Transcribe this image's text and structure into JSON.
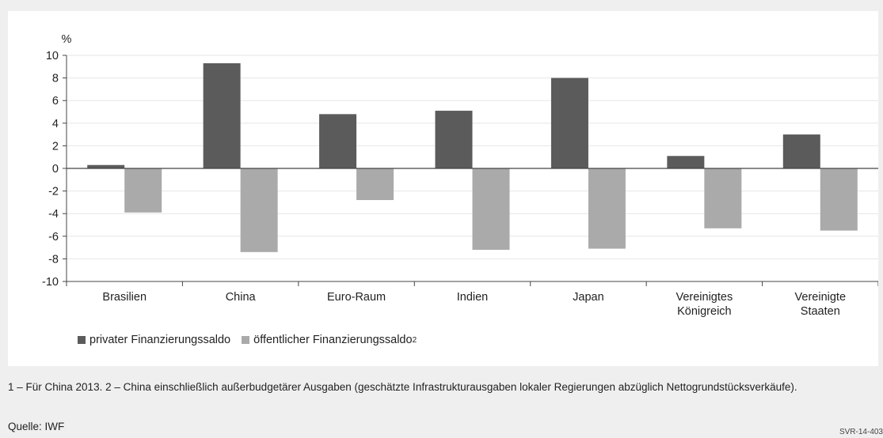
{
  "chart_data": {
    "type": "bar",
    "unit_label": "%",
    "categories": [
      [
        "Brasilien"
      ],
      [
        "China"
      ],
      [
        "Euro-Raum"
      ],
      [
        "Indien"
      ],
      [
        "Japan"
      ],
      [
        "Vereinigtes",
        "Königreich"
      ],
      [
        "Vereinigte",
        "Staaten"
      ]
    ],
    "series": [
      {
        "name": "privater Finanzierungssaldo",
        "color": "#5b5b5b",
        "values": [
          0.3,
          9.3,
          4.8,
          5.1,
          8.0,
          1.1,
          3.0
        ]
      },
      {
        "name": "öffentlicher Finanzierungssaldo",
        "name_sup": "2",
        "color": "#aaaaaa",
        "values": [
          -3.9,
          -7.4,
          -2.8,
          -7.2,
          -7.1,
          -5.3,
          -5.5
        ]
      }
    ],
    "ylim": [
      -10,
      10
    ],
    "yticks": [
      10,
      8,
      6,
      4,
      2,
      0,
      -2,
      -4,
      -6,
      -8,
      -10
    ],
    "grid": true,
    "legend_position": "bottom-left"
  },
  "footnote": "1 – Für China 2013.  2 – China einschließlich außerbudgetärer Ausgaben (geschätzte Infrastrukturausgaben lokaler Regierungen abzüglich Nettogrundstücksverkäufe).",
  "source": "Quelle: IWF",
  "code": "SVR-14-403"
}
